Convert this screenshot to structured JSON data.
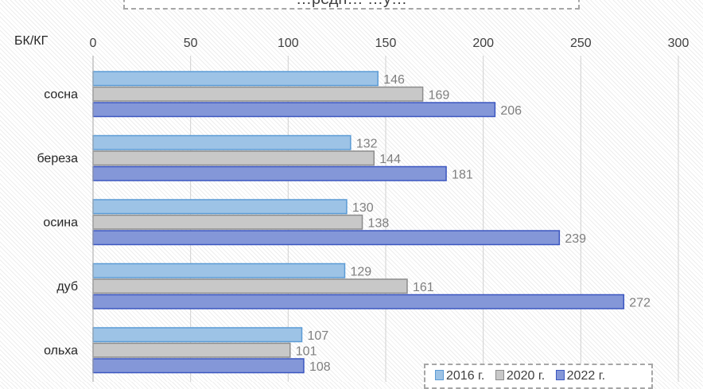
{
  "chart_data": {
    "type": "bar",
    "orientation": "horizontal",
    "title": "…редн… …у…",
    "unit_label": "БК/КГ",
    "categories": [
      "сосна",
      "береза",
      "осина",
      "дуб",
      "ольха"
    ],
    "series": [
      {
        "name": "2016 г.",
        "values": [
          146,
          132,
          130,
          129,
          107
        ],
        "color": "#9dc3e6"
      },
      {
        "name": "2020 г.",
        "values": [
          169,
          144,
          138,
          161,
          101
        ],
        "color": "#c8c8c8"
      },
      {
        "name": "2022 г.",
        "values": [
          206,
          181,
          239,
          272,
          108
        ],
        "color": "#8497d8"
      }
    ],
    "xlim": [
      0,
      300
    ],
    "xticks": [
      0,
      50,
      100,
      150,
      200,
      250,
      300
    ],
    "x_axis_position": "top",
    "grid": true,
    "legend_position": "bottom-right",
    "data_labels": true
  }
}
